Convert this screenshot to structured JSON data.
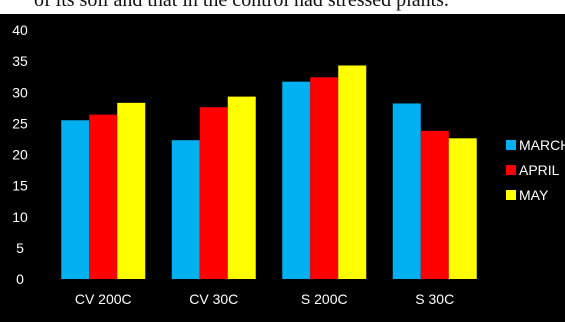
{
  "page": {
    "cropped_text": "of its soil and that in the control had stressed plants."
  },
  "chart_data": {
    "type": "bar",
    "title": "",
    "xlabel": "",
    "ylabel": "",
    "categories": [
      "CV 200C",
      "CV 30C",
      "S 200C",
      "S 30C"
    ],
    "series": [
      {
        "name": "MARCH",
        "color": "#00b0f0",
        "values": [
          25.5,
          22.3,
          31.7,
          28.2
        ]
      },
      {
        "name": "APRIL",
        "color": "#ff0000",
        "values": [
          26.4,
          27.6,
          32.4,
          23.8
        ]
      },
      {
        "name": "MAY",
        "color": "#ffff00",
        "values": [
          28.3,
          29.3,
          34.3,
          22.6
        ]
      }
    ],
    "ylim": [
      0,
      40
    ],
    "yticks": [
      0,
      5,
      10,
      15,
      20,
      25,
      30,
      35,
      40
    ],
    "grid": false,
    "legend": "right",
    "background": "#000000",
    "text_color": "#ffffff"
  }
}
